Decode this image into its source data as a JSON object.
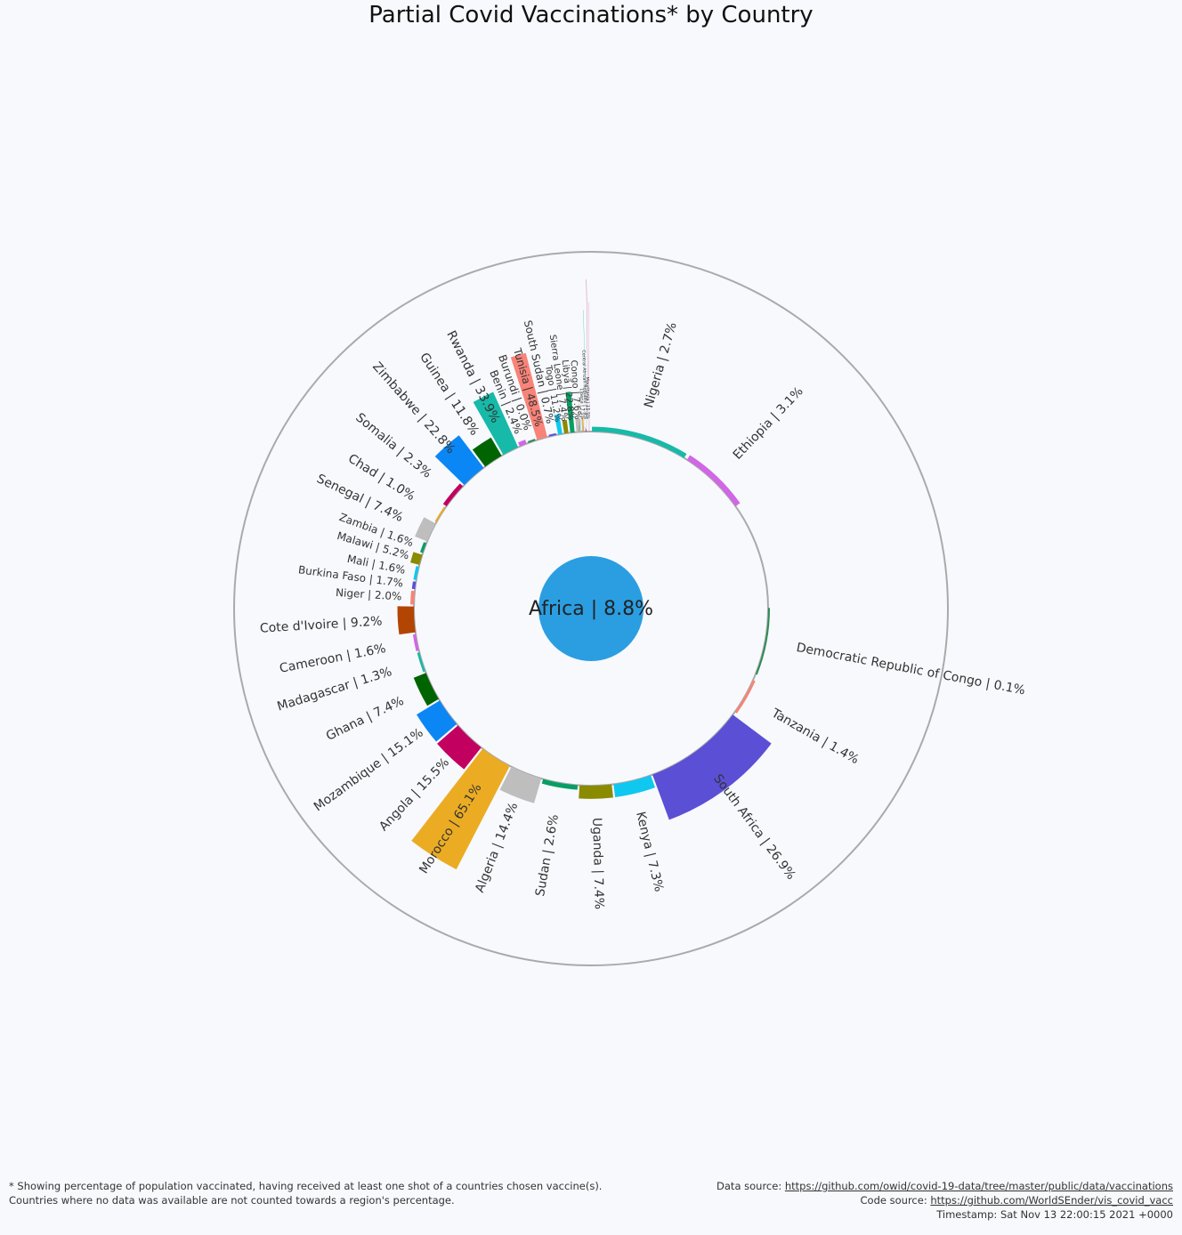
{
  "title": "Partial Covid Vaccinations* by Country",
  "footer": {
    "note_line1": "* Showing percentage of population vaccinated, having received at least one shot of a countries chosen vaccine(s).",
    "note_line2": "Countries where no data was available are not counted towards a region's percentage.",
    "data_source_label": "Data source:",
    "data_source_url": "https://github.com/owid/covid-19-data/tree/master/public/data/vaccinations",
    "code_source_label": "Code source:",
    "code_source_url": "https://github.com/WorldSEnder/vis_covid_vacc",
    "timestamp": "Timestamp: Sat Nov 13 22:00:15 2021 +0000"
  },
  "chart_data": {
    "type": "sunburst",
    "title": "Partial Covid Vaccinations* by Country",
    "center": {
      "label": "Africa | 8.8%",
      "name": "Africa",
      "value": 8.8,
      "color": "#2b9ee2"
    },
    "scale_max_percent": 100,
    "countries": [
      {
        "name": "Nigeria",
        "label": "Nigeria | 2.7%",
        "value": 2.7,
        "color": "#17b9a8"
      },
      {
        "name": "Ethiopia",
        "label": "Ethiopia | 3.1%",
        "value": 3.1,
        "color": "#d166e6"
      },
      {
        "name": "Democratic Republic of Congo",
        "label": "Democratic Republic of Congo | 0.1%",
        "value": 0.1,
        "color": "#2e8b57"
      },
      {
        "name": "Tanzania",
        "label": "Tanzania | 1.4%",
        "value": 1.4,
        "color": "#f88378"
      },
      {
        "name": "South Africa",
        "label": "South Africa | 26.9%",
        "value": 26.9,
        "color": "#5b4fd6"
      },
      {
        "name": "Kenya",
        "label": "Kenya | 7.3%",
        "value": 7.3,
        "color": "#0fc8f0"
      },
      {
        "name": "Uganda",
        "label": "Uganda | 7.4%",
        "value": 7.4,
        "color": "#8b8b00"
      },
      {
        "name": "Sudan",
        "label": "Sudan | 2.6%",
        "value": 2.6,
        "color": "#079e64"
      },
      {
        "name": "Algeria",
        "label": "Algeria | 14.4%",
        "value": 14.4,
        "color": "#bebebe"
      },
      {
        "name": "Morocco",
        "label": "Morocco | 65.1%",
        "value": 65.1,
        "color": "#ebac23"
      },
      {
        "name": "Angola",
        "label": "Angola | 15.5%",
        "value": 15.5,
        "color": "#c20060"
      },
      {
        "name": "Mozambique",
        "label": "Mozambique | 15.1%",
        "value": 15.1,
        "color": "#0b86f5"
      },
      {
        "name": "Ghana",
        "label": "Ghana | 7.4%",
        "value": 7.4,
        "color": "#006400"
      },
      {
        "name": "Madagascar",
        "label": "Madagascar | 1.3%",
        "value": 1.3,
        "color": "#17b9a8"
      },
      {
        "name": "Cameroon",
        "label": "Cameroon | 1.6%",
        "value": 1.6,
        "color": "#d166e6"
      },
      {
        "name": "Cote d'Ivoire",
        "label": "Cote d'Ivoire | 9.2%",
        "value": 9.2,
        "color": "#b24502"
      },
      {
        "name": "Niger",
        "label": "Niger | 2.0%",
        "value": 2.0,
        "color": "#f88378"
      },
      {
        "name": "Burkina Faso",
        "label": "Burkina Faso | 1.7%",
        "value": 1.7,
        "color": "#5b4fd6"
      },
      {
        "name": "Mali",
        "label": "Mali | 1.6%",
        "value": 1.6,
        "color": "#0fc8f0"
      },
      {
        "name": "Malawi",
        "label": "Malawi | 5.2%",
        "value": 5.2,
        "color": "#8b8b00"
      },
      {
        "name": "Zambia",
        "label": "Zambia | 1.6%",
        "value": 1.6,
        "color": "#079e64"
      },
      {
        "name": "Senegal",
        "label": "Senegal | 7.4%",
        "value": 7.4,
        "color": "#bebebe"
      },
      {
        "name": "Chad",
        "label": "Chad | 1.0%",
        "value": 1.0,
        "color": "#ebac23"
      },
      {
        "name": "Somalia",
        "label": "Somalia | 2.3%",
        "value": 2.3,
        "color": "#c20060"
      },
      {
        "name": "Zimbabwe",
        "label": "Zimbabwe | 22.8%",
        "value": 22.8,
        "color": "#0b86f5"
      },
      {
        "name": "Guinea",
        "label": "Guinea | 11.8%",
        "value": 11.8,
        "color": "#006400"
      },
      {
        "name": "Rwanda",
        "label": "Rwanda | 33.9%",
        "value": 33.9,
        "color": "#17b9a8"
      },
      {
        "name": "Benin",
        "label": "Benin | 2.4%",
        "value": 2.4,
        "color": "#d166e6"
      },
      {
        "name": "Burundi",
        "label": "Burundi | 0.0%",
        "value": 0.0,
        "color": "#2e8b57"
      },
      {
        "name": "Tunisia",
        "label": "Tunisia | 48.5%",
        "value": 48.5,
        "color": "#f88378"
      },
      {
        "name": "South Sudan",
        "label": "South Sudan | 0.7%",
        "value": 0.7,
        "color": "#5b4fd6"
      },
      {
        "name": "Togo",
        "label": "Togo | 11.2%",
        "value": 11.2,
        "color": "#0fc8f0"
      },
      {
        "name": "Sierra Leone",
        "label": "Sierra Leone | 7.4%",
        "value": 7.4,
        "color": "#8b8b00"
      },
      {
        "name": "Libya",
        "label": "Libya | 22.8%",
        "value": 22.8,
        "color": "#079e64"
      },
      {
        "name": "Congo",
        "label": "Congo | 7.6%",
        "value": 7.6,
        "color": "#bebebe"
      },
      {
        "name": "Liberia",
        "label": "Liberia | 7.5%",
        "value": 7.5,
        "color": "#ebac23"
      },
      {
        "name": "Central African Republic",
        "label": "Central African Republic | 1.4%",
        "value": 1.4,
        "color": "#c20060"
      },
      {
        "name": "Mauritania",
        "label": "Mauritania | 15.5%",
        "value": 15.5,
        "color": "#0b86f5"
      }
    ],
    "small_countries": [
      {
        "value": 4.0,
        "color": "#006400"
      },
      {
        "value": 23.0,
        "color": "#b24502"
      },
      {
        "value": 8.0,
        "color": "#17b9a8"
      },
      {
        "value": 12.0,
        "color": "#5b4fd6"
      },
      {
        "value": 6.0,
        "color": "#0fc8f0"
      },
      {
        "value": 10.0,
        "color": "#f88378"
      },
      {
        "value": 3.0,
        "color": "#c20060"
      },
      {
        "value": 80.0,
        "color": "#17b9a8"
      },
      {
        "value": 30.0,
        "color": "#bebebe"
      },
      {
        "value": 100.0,
        "color": "#c04040"
      },
      {
        "value": 85.0,
        "color": "#d166e6"
      }
    ]
  }
}
